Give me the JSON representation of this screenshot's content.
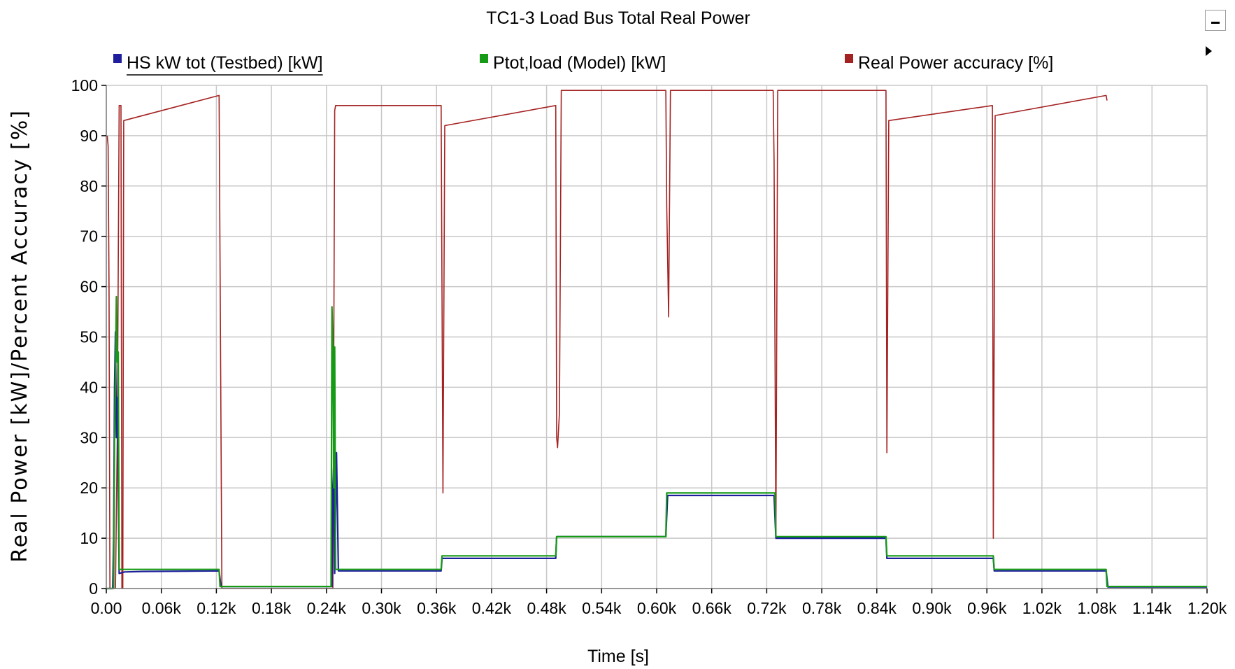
{
  "chart_data": {
    "type": "line",
    "title": "TC1-3 Load Bus Total Real Power",
    "xlabel": "Time [s]",
    "ylabel": "Real Power [kW]/Percent Accuracy [%]",
    "xlim": [
      0,
      1200
    ],
    "ylim": [
      0,
      100
    ],
    "grid": true,
    "legend_position": "top",
    "x_tick_values": [
      0,
      60,
      120,
      180,
      240,
      300,
      360,
      420,
      480,
      540,
      600,
      660,
      720,
      780,
      840,
      900,
      960,
      1020,
      1080,
      1140,
      1200
    ],
    "x_tick_labels": [
      "0.00",
      "0.06k",
      "0.12k",
      "0.18k",
      "0.24k",
      "0.30k",
      "0.36k",
      "0.42k",
      "0.48k",
      "0.54k",
      "0.60k",
      "0.66k",
      "0.72k",
      "0.78k",
      "0.84k",
      "0.90k",
      "0.96k",
      "1.02k",
      "1.08k",
      "1.14k",
      "1.20k"
    ],
    "y_tick_values": [
      0,
      10,
      20,
      30,
      40,
      50,
      60,
      70,
      80,
      90,
      100
    ],
    "y_tick_labels": [
      "0",
      "10",
      "20",
      "30",
      "40",
      "50",
      "60",
      "70",
      "80",
      "90",
      "100"
    ],
    "series": [
      {
        "name": "HS kW tot (Testbed) [kW]",
        "color": "#1f1f9e",
        "points": [
          [
            0,
            0
          ],
          [
            7,
            0
          ],
          [
            8,
            10
          ],
          [
            9,
            40
          ],
          [
            10,
            51
          ],
          [
            11,
            30
          ],
          [
            12,
            38
          ],
          [
            14,
            3
          ],
          [
            20,
            3.3
          ],
          [
            40,
            3.4
          ],
          [
            123,
            3.5
          ],
          [
            125,
            0.4
          ],
          [
            246,
            0.4
          ],
          [
            247,
            20
          ],
          [
            248,
            25
          ],
          [
            249,
            3
          ],
          [
            251,
            27
          ],
          [
            253,
            3.5
          ],
          [
            365,
            3.5
          ],
          [
            366,
            6
          ],
          [
            490,
            6
          ],
          [
            491,
            10.3
          ],
          [
            610,
            10.3
          ],
          [
            612,
            18.5
          ],
          [
            728,
            18.5
          ],
          [
            730,
            10
          ],
          [
            850,
            10
          ],
          [
            851,
            6
          ],
          [
            967,
            6
          ],
          [
            968,
            3.5
          ],
          [
            1090,
            3.5
          ],
          [
            1092,
            0.3
          ],
          [
            1200,
            0.3
          ]
        ]
      },
      {
        "name": "Ptot,load (Model) [kW]",
        "color": "#169b16",
        "points": [
          [
            0,
            0
          ],
          [
            8,
            0
          ],
          [
            9,
            30
          ],
          [
            10,
            42
          ],
          [
            11,
            58
          ],
          [
            12,
            45
          ],
          [
            13,
            47
          ],
          [
            14,
            3.8
          ],
          [
            123,
            3.8
          ],
          [
            124,
            0.4
          ],
          [
            245,
            0.4
          ],
          [
            246,
            56
          ],
          [
            247,
            48
          ],
          [
            248,
            20
          ],
          [
            249,
            48
          ],
          [
            250,
            3.8
          ],
          [
            365,
            3.8
          ],
          [
            366,
            6.5
          ],
          [
            490,
            6.5
          ],
          [
            491,
            10.3
          ],
          [
            610,
            10.3
          ],
          [
            611,
            19
          ],
          [
            729,
            19
          ],
          [
            730,
            10.3
          ],
          [
            850,
            10.3
          ],
          [
            851,
            6.5
          ],
          [
            967,
            6.5
          ],
          [
            968,
            3.8
          ],
          [
            1090,
            3.8
          ],
          [
            1091,
            0.4
          ],
          [
            1200,
            0.4
          ]
        ]
      },
      {
        "name": "Real Power accuracy [%]",
        "color": "#a52222",
        "points": [
          [
            1,
            90
          ],
          [
            2,
            88
          ],
          [
            3,
            60
          ],
          [
            4,
            0
          ],
          [
            10,
            0
          ],
          [
            12,
            30
          ],
          [
            14,
            96
          ],
          [
            16,
            96
          ],
          [
            17,
            0
          ],
          [
            18,
            0
          ],
          [
            19,
            93
          ],
          [
            123,
            98
          ],
          [
            126,
            0
          ],
          [
            247,
            0
          ],
          [
            249,
            95
          ],
          [
            250,
            96
          ],
          [
            365,
            96
          ],
          [
            366,
            57
          ],
          [
            367,
            19
          ],
          [
            369,
            92
          ],
          [
            490,
            96
          ],
          [
            491,
            30
          ],
          [
            492,
            28
          ],
          [
            494,
            35
          ],
          [
            496,
            99
          ],
          [
            610,
            99
          ],
          [
            611,
            76
          ],
          [
            613,
            54
          ],
          [
            615,
            99
          ],
          [
            727,
            99
          ],
          [
            728,
            85
          ],
          [
            730,
            10
          ],
          [
            732,
            99
          ],
          [
            850,
            99
          ],
          [
            851,
            27
          ],
          [
            853,
            93
          ],
          [
            966,
            96
          ],
          [
            967,
            10
          ],
          [
            969,
            94
          ],
          [
            1090,
            98
          ],
          [
            1091,
            97
          ]
        ]
      }
    ]
  }
}
